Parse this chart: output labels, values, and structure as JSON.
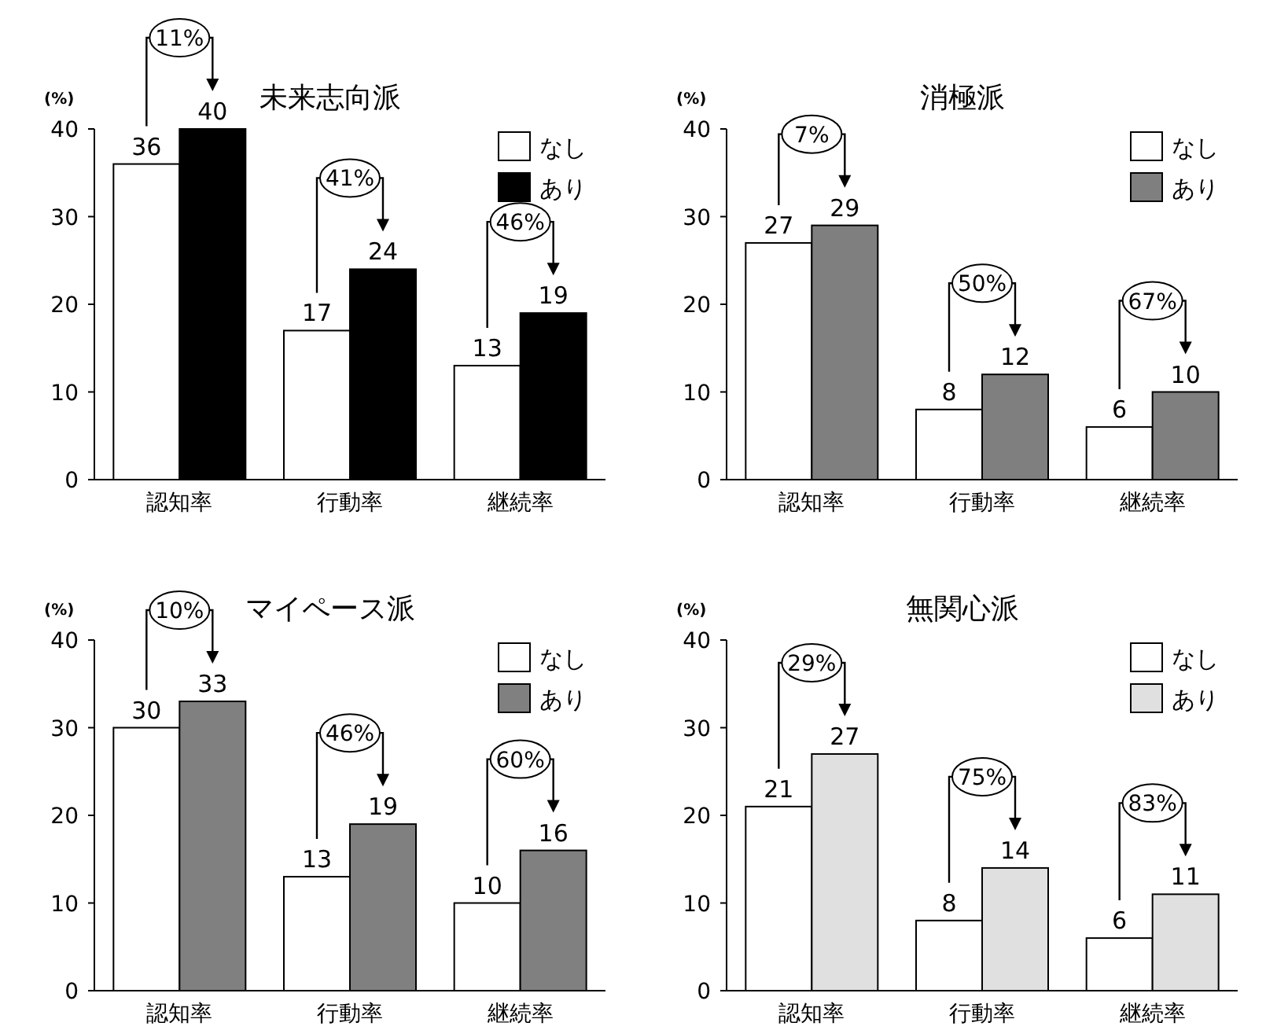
{
  "chart_data": [
    {
      "type": "bar",
      "title": "未来志向派",
      "ylabel": "(%)",
      "categories": [
        "認知率",
        "行動率",
        "継続率"
      ],
      "ylim": [
        0,
        40
      ],
      "yticks": [
        0,
        10,
        20,
        30,
        40
      ],
      "data_labels": true,
      "legend": "top right",
      "grid": false,
      "series": [
        {
          "name": "なし",
          "color": "#ffffff",
          "values": [
            36,
            17,
            13
          ]
        },
        {
          "name": "あり",
          "color": "#000000",
          "values": [
            40,
            24,
            19
          ]
        }
      ],
      "annotations": [
        "11%",
        "41%",
        "46%"
      ]
    },
    {
      "type": "bar",
      "title": "消極派",
      "ylabel": "(%)",
      "categories": [
        "認知率",
        "行動率",
        "継続率"
      ],
      "ylim": [
        0,
        40
      ],
      "yticks": [
        0,
        10,
        20,
        30,
        40
      ],
      "data_labels": true,
      "legend": "top right",
      "grid": false,
      "series": [
        {
          "name": "なし",
          "color": "#ffffff",
          "values": [
            27,
            8,
            6
          ]
        },
        {
          "name": "あり",
          "color": "#7f7f7f",
          "values": [
            29,
            12,
            10
          ]
        }
      ],
      "annotations": [
        "7%",
        "50%",
        "67%"
      ]
    },
    {
      "type": "bar",
      "title": "マイペース派",
      "ylabel": "(%)",
      "categories": [
        "認知率",
        "行動率",
        "継続率"
      ],
      "ylim": [
        0,
        40
      ],
      "yticks": [
        0,
        10,
        20,
        30,
        40
      ],
      "data_labels": true,
      "legend": "top right",
      "grid": false,
      "series": [
        {
          "name": "なし",
          "color": "#ffffff",
          "values": [
            30,
            13,
            10
          ]
        },
        {
          "name": "あり",
          "color": "#808080",
          "values": [
            33,
            19,
            16
          ]
        }
      ],
      "annotations": [
        "10%",
        "46%",
        "60%"
      ]
    },
    {
      "type": "bar",
      "title": "無関心派",
      "ylabel": "(%)",
      "categories": [
        "認知率",
        "行動率",
        "継続率"
      ],
      "ylim": [
        0,
        40
      ],
      "yticks": [
        0,
        10,
        20,
        30,
        40
      ],
      "data_labels": true,
      "legend": "top right",
      "grid": false,
      "series": [
        {
          "name": "なし",
          "color": "#ffffff",
          "values": [
            21,
            8,
            6
          ]
        },
        {
          "name": "あり",
          "color": "#e0e0e0",
          "values": [
            27,
            14,
            11
          ]
        }
      ],
      "annotations": [
        "29%",
        "75%",
        "83%"
      ]
    }
  ]
}
